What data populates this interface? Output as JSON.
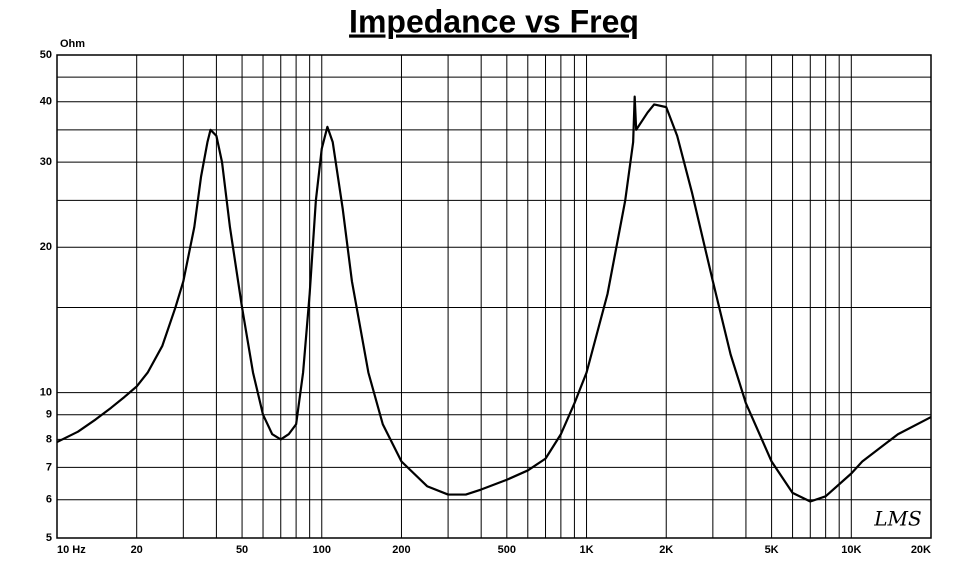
{
  "chart_data": {
    "type": "line",
    "title": "Impedance vs Freq",
    "y_unit": "Ohm",
    "watermark": "LMS",
    "log_x": true,
    "log_y": true,
    "grid": true,
    "xlim": [
      10,
      20000
    ],
    "ylim": [
      5,
      50
    ],
    "xticks": [
      {
        "value": 10,
        "label": "10 Hz"
      },
      20,
      50,
      100,
      200,
      500,
      {
        "value": 1000,
        "label": "1K"
      },
      {
        "value": 2000,
        "label": "2K"
      },
      {
        "value": 5000,
        "label": "5K"
      },
      {
        "value": 10000,
        "label": "10K"
      },
      {
        "value": 20000,
        "label": "20K"
      }
    ],
    "x_minor_ticks": [
      30,
      40,
      60,
      70,
      80,
      90,
      300,
      400,
      600,
      700,
      800,
      900,
      3000,
      4000,
      6000,
      7000,
      8000,
      9000
    ],
    "yticks": [
      5,
      6,
      7,
      8,
      9,
      10,
      20,
      30,
      40,
      50
    ],
    "y_minor_ticks": [
      15,
      25,
      35,
      45
    ],
    "x": [
      10,
      12,
      14,
      16,
      18,
      20,
      22,
      25,
      28,
      30,
      33,
      35,
      37,
      38,
      40,
      42,
      45,
      50,
      55,
      60,
      65,
      70,
      75,
      80,
      85,
      90,
      95,
      100,
      105,
      110,
      120,
      130,
      150,
      170,
      200,
      250,
      300,
      350,
      400,
      500,
      600,
      700,
      800,
      900,
      1000,
      1200,
      1400,
      1500,
      1520,
      1540,
      1700,
      1800,
      2000,
      2200,
      2500,
      3000,
      3500,
      4000,
      5000,
      6000,
      7000,
      8000,
      10000,
      11000,
      15000,
      20000
    ],
    "series": [
      {
        "name": "Impedance",
        "color": "#000000",
        "values": [
          7.9,
          8.3,
          8.8,
          9.3,
          9.8,
          10.3,
          11,
          12.5,
          15,
          17,
          22,
          28,
          33,
          35,
          34,
          30,
          22,
          15,
          11,
          9,
          8.2,
          8,
          8.2,
          8.6,
          11,
          16,
          25,
          32,
          35.5,
          33,
          24,
          17,
          11,
          8.6,
          7.2,
          6.4,
          6.15,
          6.15,
          6.3,
          6.6,
          6.9,
          7.3,
          8.2,
          9.5,
          11,
          16,
          25,
          33,
          41,
          35,
          38,
          39.5,
          39,
          34,
          26,
          17,
          12,
          9.5,
          7.2,
          6.2,
          5.95,
          6.1,
          6.8,
          7.2,
          8.2,
          8.9
        ]
      }
    ]
  }
}
